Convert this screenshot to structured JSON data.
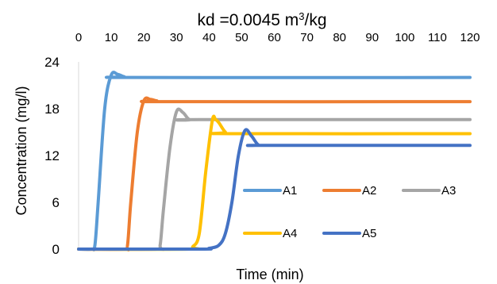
{
  "chart_data": {
    "type": "line",
    "title_main": "kd =0.0045 m",
    "title_sup": "3",
    "title_end": "/kg",
    "xlabel": "Time (min)",
    "ylabel": "Concentration (mg/l)",
    "xlim": [
      0,
      120
    ],
    "ylim": [
      0,
      24
    ],
    "x_ticks": [
      "0",
      "10",
      "20",
      "30",
      "40",
      "50",
      "60",
      "70",
      "80",
      "90",
      "100",
      "110",
      "120"
    ],
    "y_ticks": [
      "0",
      "6",
      "12",
      "18",
      "24"
    ],
    "x_axis_position": "top",
    "grid": false,
    "series": [
      {
        "name": "A1",
        "color": "#5B9BD5",
        "x": [
          0,
          4,
          5,
          6,
          8,
          10,
          12,
          14,
          17,
          120
        ],
        "y": [
          0,
          0,
          0.5,
          6,
          18,
          22.3,
          22.4,
          22.1,
          22,
          22
        ]
      },
      {
        "name": "A2",
        "color": "#ED7D31",
        "x": [
          0,
          14,
          15,
          16,
          18,
          20,
          22,
          24,
          27,
          120
        ],
        "y": [
          0,
          0,
          0.5,
          6,
          15,
          19,
          19.2,
          19,
          18.9,
          18.9
        ]
      },
      {
        "name": "A3",
        "color": "#A5A5A5",
        "x": [
          0,
          24,
          25,
          26,
          28,
          30,
          32,
          34,
          37,
          120
        ],
        "y": [
          0,
          0,
          0.5,
          5,
          13,
          17.6,
          17.5,
          16.6,
          16.6,
          16.6
        ]
      },
      {
        "name": "A4",
        "color": "#FFC000",
        "x": [
          0,
          34,
          35,
          37,
          39,
          41,
          42,
          43,
          45,
          47,
          120
        ],
        "y": [
          0,
          0,
          0.3,
          2,
          10,
          16.5,
          16.6,
          16.2,
          15,
          14.8,
          14.8
        ]
      },
      {
        "name": "A5",
        "color": "#4472C4",
        "x": [
          0,
          37,
          40,
          43,
          45,
          47,
          49,
          51,
          53,
          55,
          57,
          120
        ],
        "y": [
          0,
          0,
          0.1,
          0.5,
          2,
          6,
          12,
          15.2,
          14.5,
          13.4,
          13.3,
          13.3
        ]
      }
    ],
    "legend_position": "inside-lower-right"
  }
}
